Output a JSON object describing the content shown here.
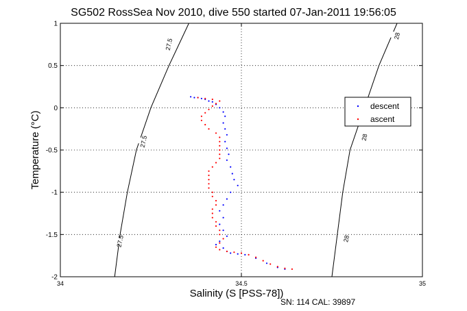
{
  "chart_data": {
    "type": "scatter",
    "title": "SG502 RossSea Nov 2010, dive 550 started 07-Jan-2011 19:56:05",
    "xlabel": "Salinity (S [PSS-78])",
    "ylabel": "Temperature (°C)",
    "xlim": [
      34,
      35
    ],
    "ylim": [
      -2,
      1
    ],
    "xticks": [
      34,
      34.5,
      35
    ],
    "xtick_labels": [
      "34",
      "34.5",
      "35"
    ],
    "yticks": [
      1,
      0.5,
      0,
      -0.5,
      -1,
      -1.5,
      -2
    ],
    "ytick_labels": [
      "1",
      "0.5",
      "0",
      "-0.5",
      "-1",
      "-1.5",
      "-2"
    ],
    "grid": true,
    "legend_position": "right",
    "series": [
      {
        "name": "descent",
        "color": "#0000ff",
        "marker": "dot",
        "points": [
          [
            34.36,
            0.13
          ],
          [
            34.37,
            0.12
          ],
          [
            34.38,
            0.12
          ],
          [
            34.39,
            0.11
          ],
          [
            34.4,
            0.1
          ],
          [
            34.41,
            0.08
          ],
          [
            34.42,
            0.07
          ],
          [
            34.43,
            0.04
          ],
          [
            34.44,
            0.0
          ],
          [
            34.45,
            -0.05
          ],
          [
            34.455,
            -0.1
          ],
          [
            34.45,
            -0.18
          ],
          [
            34.455,
            -0.25
          ],
          [
            34.46,
            -0.32
          ],
          [
            34.455,
            -0.4
          ],
          [
            34.46,
            -0.48
          ],
          [
            34.465,
            -0.55
          ],
          [
            34.46,
            -0.62
          ],
          [
            34.47,
            -0.7
          ],
          [
            34.475,
            -0.78
          ],
          [
            34.48,
            -0.85
          ],
          [
            34.49,
            -0.92
          ],
          [
            34.47,
            -1.0
          ],
          [
            34.46,
            -1.08
          ],
          [
            34.45,
            -1.15
          ],
          [
            34.44,
            -1.22
          ],
          [
            34.45,
            -1.3
          ],
          [
            34.44,
            -1.38
          ],
          [
            34.45,
            -1.45
          ],
          [
            34.46,
            -1.52
          ],
          [
            34.44,
            -1.58
          ],
          [
            34.43,
            -1.62
          ],
          [
            34.45,
            -1.66
          ],
          [
            34.46,
            -1.7
          ],
          [
            34.47,
            -1.72
          ],
          [
            34.49,
            -1.73
          ],
          [
            34.51,
            -1.74
          ],
          [
            34.54,
            -1.78
          ],
          [
            34.57,
            -1.84
          ],
          [
            34.6,
            -1.89
          ],
          [
            34.62,
            -1.91
          ]
        ]
      },
      {
        "name": "ascent",
        "color": "#ff0000",
        "marker": "dot",
        "points": [
          [
            34.38,
            0.12
          ],
          [
            34.4,
            0.11
          ],
          [
            34.42,
            0.1
          ],
          [
            34.44,
            0.08
          ],
          [
            34.43,
            0.05
          ],
          [
            34.42,
            0.02
          ],
          [
            34.41,
            -0.02
          ],
          [
            34.4,
            -0.06
          ],
          [
            34.39,
            -0.1
          ],
          [
            34.39,
            -0.15
          ],
          [
            34.4,
            -0.2
          ],
          [
            34.41,
            -0.25
          ],
          [
            34.43,
            -0.3
          ],
          [
            34.44,
            -0.35
          ],
          [
            34.44,
            -0.4
          ],
          [
            34.44,
            -0.45
          ],
          [
            34.44,
            -0.5
          ],
          [
            34.44,
            -0.55
          ],
          [
            34.44,
            -0.6
          ],
          [
            34.43,
            -0.65
          ],
          [
            34.42,
            -0.7
          ],
          [
            34.41,
            -0.75
          ],
          [
            34.41,
            -0.8
          ],
          [
            34.41,
            -0.85
          ],
          [
            34.41,
            -0.9
          ],
          [
            34.41,
            -0.95
          ],
          [
            34.42,
            -1.0
          ],
          [
            34.42,
            -1.05
          ],
          [
            34.43,
            -1.1
          ],
          [
            34.43,
            -1.15
          ],
          [
            34.42,
            -1.2
          ],
          [
            34.42,
            -1.25
          ],
          [
            34.42,
            -1.3
          ],
          [
            34.43,
            -1.35
          ],
          [
            34.43,
            -1.4
          ],
          [
            34.44,
            -1.45
          ],
          [
            34.44,
            -1.5
          ],
          [
            34.45,
            -1.55
          ],
          [
            34.44,
            -1.6
          ],
          [
            34.43,
            -1.65
          ],
          [
            34.44,
            -1.68
          ],
          [
            34.46,
            -1.7
          ],
          [
            34.48,
            -1.71
          ],
          [
            34.5,
            -1.72
          ],
          [
            34.52,
            -1.74
          ],
          [
            34.54,
            -1.77
          ],
          [
            34.56,
            -1.81
          ],
          [
            34.58,
            -1.85
          ],
          [
            34.6,
            -1.88
          ],
          [
            34.62,
            -1.9
          ],
          [
            34.64,
            -1.91
          ]
        ]
      }
    ],
    "contours": [
      {
        "label": "27.5",
        "points": [
          [
            34.355,
            1.0
          ],
          [
            34.3,
            0.5
          ],
          [
            34.25,
            0.0
          ],
          [
            34.21,
            -0.5
          ],
          [
            34.185,
            -1.0
          ],
          [
            34.165,
            -1.5
          ],
          [
            34.15,
            -2.0
          ]
        ]
      },
      {
        "label": "28",
        "points": [
          [
            34.93,
            1.0
          ],
          [
            34.88,
            0.5
          ],
          [
            34.84,
            0.0
          ],
          [
            34.8,
            -0.5
          ],
          [
            34.78,
            -1.0
          ],
          [
            34.765,
            -1.5
          ],
          [
            34.75,
            -2.0
          ]
        ]
      }
    ],
    "contour_labels": [
      {
        "text": "27.5",
        "x": 34.3,
        "y": 0.75
      },
      {
        "text": "27.5",
        "x": 34.23,
        "y": -0.4
      },
      {
        "text": "27.5",
        "x": 34.165,
        "y": -1.58
      },
      {
        "text": "28",
        "x": 34.93,
        "y": 0.85
      },
      {
        "text": "28",
        "x": 34.84,
        "y": -0.35
      },
      {
        "text": "28",
        "x": 34.79,
        "y": -1.55
      }
    ],
    "footer": "SN: 114  CAL: 39897"
  }
}
